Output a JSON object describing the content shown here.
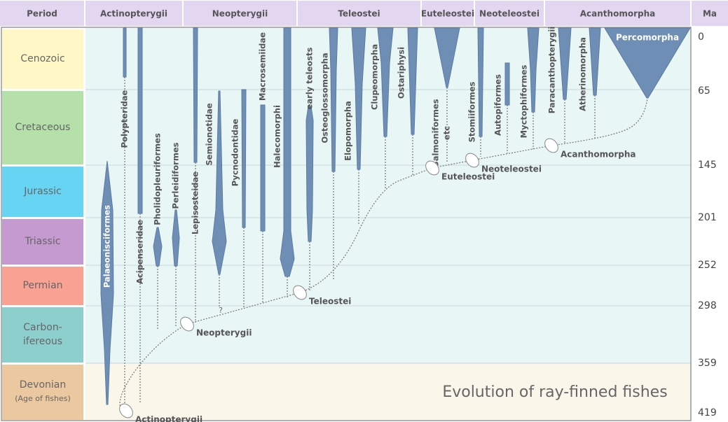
{
  "header": [
    "Period",
    "Actinopterygii",
    "Neopterygii",
    "Teleostei",
    "Euteleostei",
    "Neoteleostei",
    "Acanthomorpha",
    "Ma"
  ],
  "periods": [
    [
      "Cenozoic"
    ],
    [
      "Cretaceous"
    ],
    [
      "Jurassic"
    ],
    [
      "Triassic"
    ],
    [
      "Permian"
    ],
    [
      "Carbon-",
      "ifereous"
    ],
    [
      "Devonian",
      "(Age of fishes)"
    ]
  ],
  "ma_ticks": [
    "0",
    "65",
    "145",
    "201",
    "252",
    "298",
    "359",
    "419"
  ],
  "taxa": [
    [
      "Palaeonisciformes"
    ],
    [
      "Polypteridae"
    ],
    [
      "Acipenseridae"
    ],
    [
      "Pholidopleuriformes"
    ],
    [
      "Perleidiformes"
    ],
    [
      "Lepisosteidae"
    ],
    [
      "Semionotidae"
    ],
    [
      "Pycnodontidae"
    ],
    [
      "Macrosemiidae"
    ],
    [
      "Halecomorphi"
    ],
    [
      "early teleosts"
    ],
    [
      "Osteoglossomorpha"
    ],
    [
      "Elopomorpha"
    ],
    [
      "Clupeomorpha"
    ],
    [
      "Ostariphysi"
    ],
    [
      "Salmoniformes",
      "etc"
    ],
    [
      "Stomiiformes"
    ],
    [
      "Autopiformes"
    ],
    [
      "Myctophiformes"
    ],
    [
      "Paracanthopterygii"
    ],
    [
      "Atherinomorpha"
    ],
    [
      "Percomorpha"
    ]
  ],
  "nodes": [
    "Actinopterygii",
    "Neopterygii",
    "Teleostei",
    "Euteleostei",
    "Neoteleostei",
    "Acanthomorpha"
  ],
  "uncertain_mark": "?",
  "title": "Evolution of ray-finned fishes"
}
